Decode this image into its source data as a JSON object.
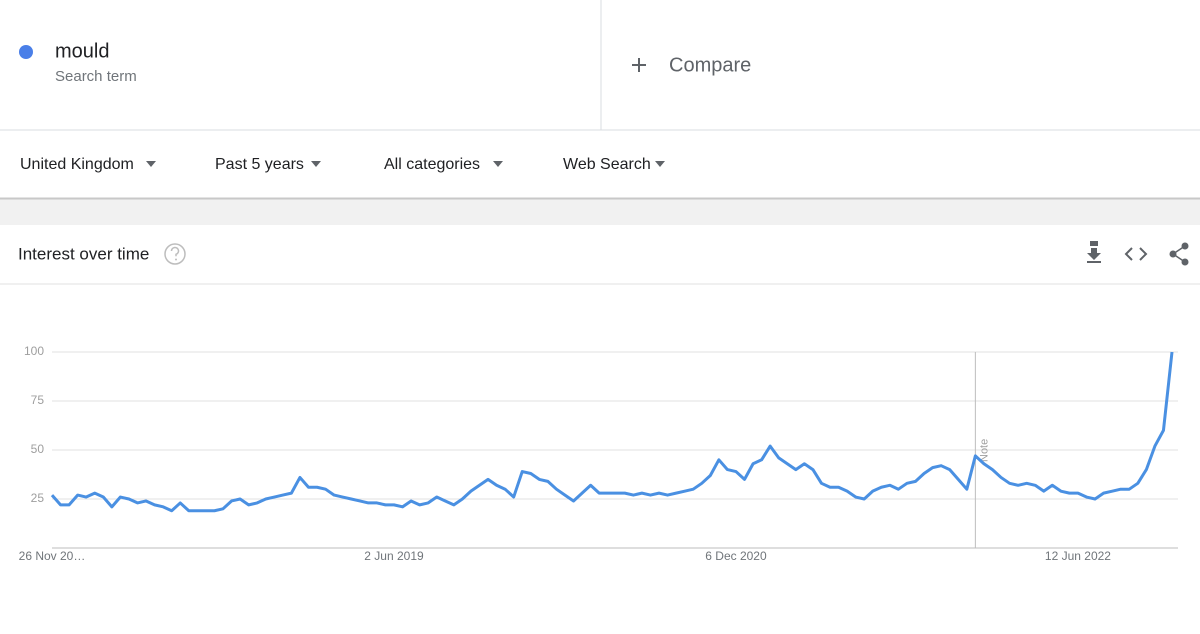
{
  "header": {
    "term_subtitle": "Search term",
    "compare": "Compare"
  },
  "filters": [
    "United Kingdom",
    "Past 5 years",
    "All categories",
    "Web Search"
  ],
  "card": {
    "title": "Interest over time"
  },
  "chart_data": {
    "type": "line",
    "categories": [
      "26 Nov 20…",
      null,
      null,
      null,
      null,
      null,
      null,
      null,
      null,
      null,
      null,
      null,
      null,
      null,
      null,
      null,
      null,
      null,
      null,
      null,
      null,
      null,
      null,
      null,
      null,
      null,
      null,
      null,
      null,
      null,
      null,
      null,
      null,
      null,
      null,
      null,
      null,
      null,
      null,
      null,
      "2 Jun 2019",
      null,
      null,
      null,
      null,
      null,
      null,
      null,
      null,
      null,
      null,
      null,
      null,
      null,
      null,
      null,
      null,
      null,
      null,
      null,
      null,
      null,
      null,
      null,
      null,
      null,
      null,
      null,
      null,
      null,
      null,
      null,
      null,
      null,
      null,
      null,
      null,
      null,
      null,
      null,
      "6 Dec 2020",
      null,
      null,
      null,
      null,
      null,
      null,
      null,
      null,
      null,
      null,
      null,
      null,
      null,
      null,
      null,
      null,
      null,
      null,
      null,
      null,
      null,
      null,
      null,
      null,
      null,
      null,
      null,
      null,
      null,
      null,
      null,
      null,
      null,
      null,
      null,
      null,
      null,
      null,
      null,
      "12 Jun 2022",
      null,
      null,
      null,
      null,
      null,
      null,
      null,
      null,
      null,
      null,
      null
    ],
    "series": [
      {
        "name": "mould",
        "color": "#4a90e2",
        "values": [
          27,
          22,
          22,
          27,
          26,
          28,
          26,
          21,
          26,
          25,
          23,
          24,
          22,
          21,
          19,
          23,
          19,
          19,
          19,
          19,
          20,
          24,
          25,
          22,
          23,
          25,
          26,
          27,
          28,
          36,
          31,
          31,
          30,
          27,
          26,
          25,
          24,
          23,
          23,
          22,
          22,
          21,
          24,
          22,
          23,
          26,
          24,
          22,
          25,
          29,
          32,
          35,
          32,
          30,
          26,
          39,
          38,
          35,
          34,
          30,
          27,
          24,
          28,
          32,
          28,
          28,
          28,
          28,
          27,
          28,
          27,
          28,
          27,
          28,
          29,
          30,
          33,
          37,
          45,
          40,
          39,
          35,
          43,
          45,
          52,
          46,
          43,
          40,
          43,
          40,
          33,
          31,
          31,
          29,
          26,
          25,
          29,
          31,
          32,
          30,
          33,
          34,
          38,
          41,
          42,
          40,
          35,
          30,
          47,
          43,
          40,
          36,
          33,
          32,
          33,
          32,
          29,
          32,
          29,
          28,
          28,
          26,
          25,
          28,
          29,
          30,
          30,
          33,
          40,
          52,
          60,
          100
        ]
      }
    ],
    "ylim": [
      0,
      100
    ],
    "yticks": [
      25,
      50,
      75,
      100
    ],
    "grid": true,
    "notes": [
      {
        "index": 108,
        "label": "Note"
      }
    ]
  }
}
